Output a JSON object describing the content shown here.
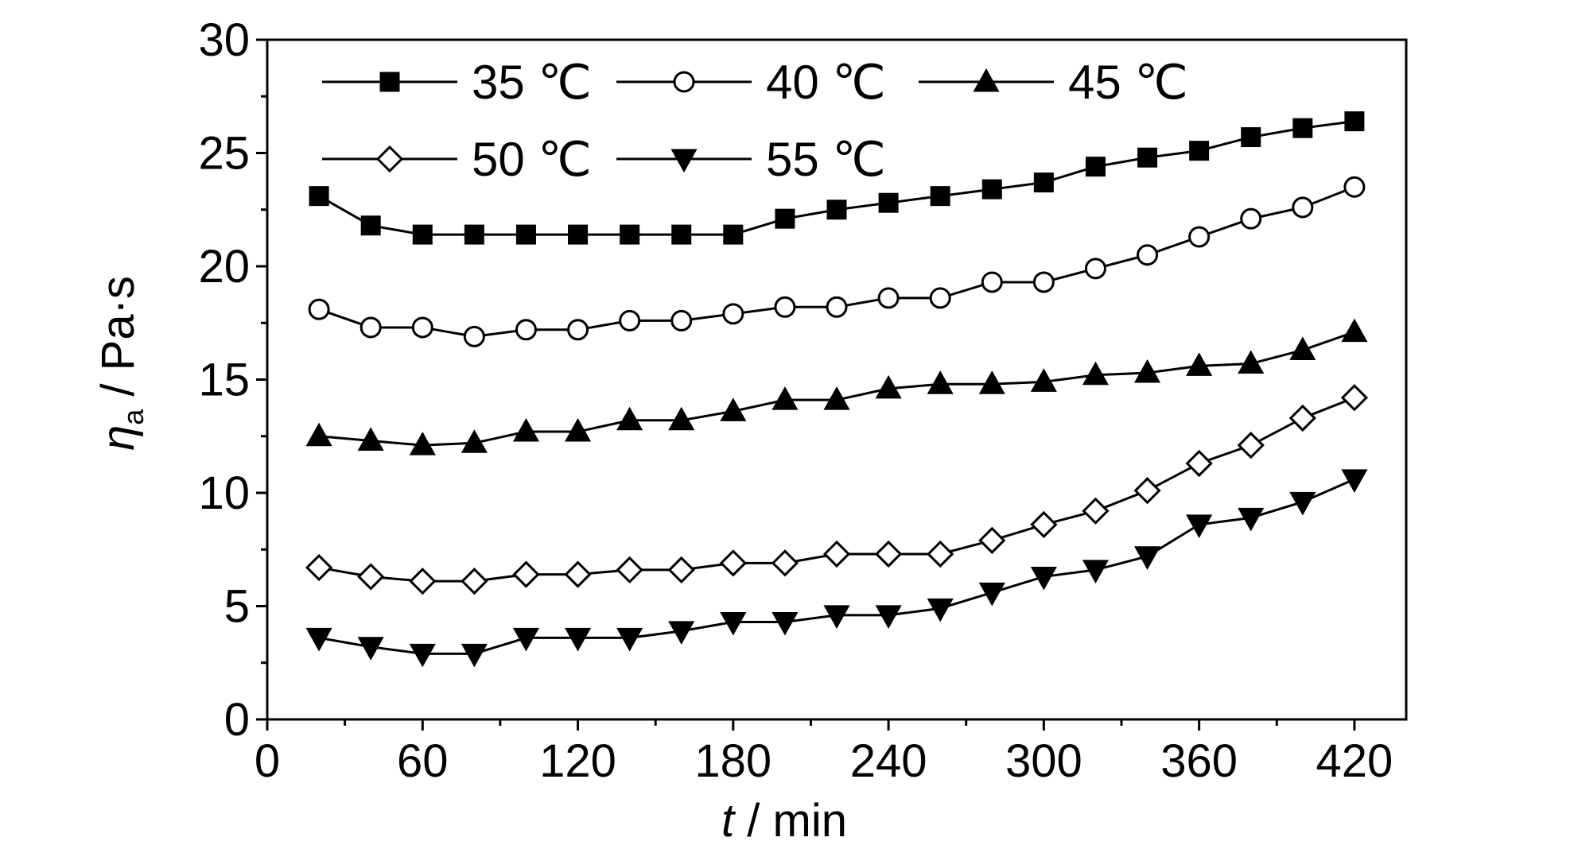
{
  "chart_data": {
    "type": "line",
    "xlabel_italic": "t",
    "xlabel_rest": " / min",
    "ylabel_symbol": "η",
    "ylabel_subscript": "a",
    "ylabel_rest": " / Pa·s",
    "xlim": [
      0,
      440
    ],
    "ylim": [
      0,
      30
    ],
    "xticks": [
      0,
      60,
      120,
      180,
      240,
      300,
      360,
      420
    ],
    "yticks": [
      0,
      5,
      10,
      15,
      20,
      25,
      30
    ],
    "grid": false,
    "legend_placement": "top-left",
    "x": [
      20,
      40,
      60,
      80,
      100,
      120,
      140,
      160,
      180,
      200,
      220,
      240,
      260,
      280,
      300,
      320,
      340,
      360,
      380,
      400,
      420
    ],
    "series": [
      {
        "name": "35 ℃",
        "marker": "square-filled",
        "values": [
          23.1,
          21.8,
          21.4,
          21.4,
          21.4,
          21.4,
          21.4,
          21.4,
          21.4,
          22.1,
          22.5,
          22.8,
          23.1,
          23.4,
          23.7,
          24.4,
          24.8,
          25.1,
          25.7,
          26.1,
          26.4
        ]
      },
      {
        "name": "40 ℃",
        "marker": "circle-open",
        "values": [
          18.1,
          17.3,
          17.3,
          16.9,
          17.2,
          17.2,
          17.6,
          17.6,
          17.9,
          18.2,
          18.2,
          18.6,
          18.6,
          19.3,
          19.3,
          19.9,
          20.5,
          21.3,
          22.1,
          22.6,
          23.5
        ]
      },
      {
        "name": "45 ℃",
        "marker": "triangle-up-filled",
        "values": [
          12.5,
          12.3,
          12.1,
          12.2,
          12.7,
          12.7,
          13.2,
          13.2,
          13.6,
          14.1,
          14.1,
          14.6,
          14.8,
          14.8,
          14.9,
          15.2,
          15.3,
          15.6,
          15.7,
          16.3,
          17.1
        ]
      },
      {
        "name": "50 ℃",
        "marker": "diamond-open",
        "values": [
          6.7,
          6.3,
          6.1,
          6.1,
          6.4,
          6.4,
          6.6,
          6.6,
          6.9,
          6.9,
          7.3,
          7.3,
          7.3,
          7.9,
          8.6,
          9.2,
          10.1,
          11.3,
          12.1,
          13.3,
          14.2
        ]
      },
      {
        "name": "55 ℃",
        "marker": "triangle-down-filled",
        "values": [
          3.6,
          3.2,
          2.9,
          2.9,
          3.6,
          3.6,
          3.6,
          3.9,
          4.3,
          4.3,
          4.6,
          4.6,
          4.9,
          5.6,
          6.3,
          6.6,
          7.2,
          8.6,
          8.9,
          9.6,
          10.6
        ]
      }
    ]
  }
}
